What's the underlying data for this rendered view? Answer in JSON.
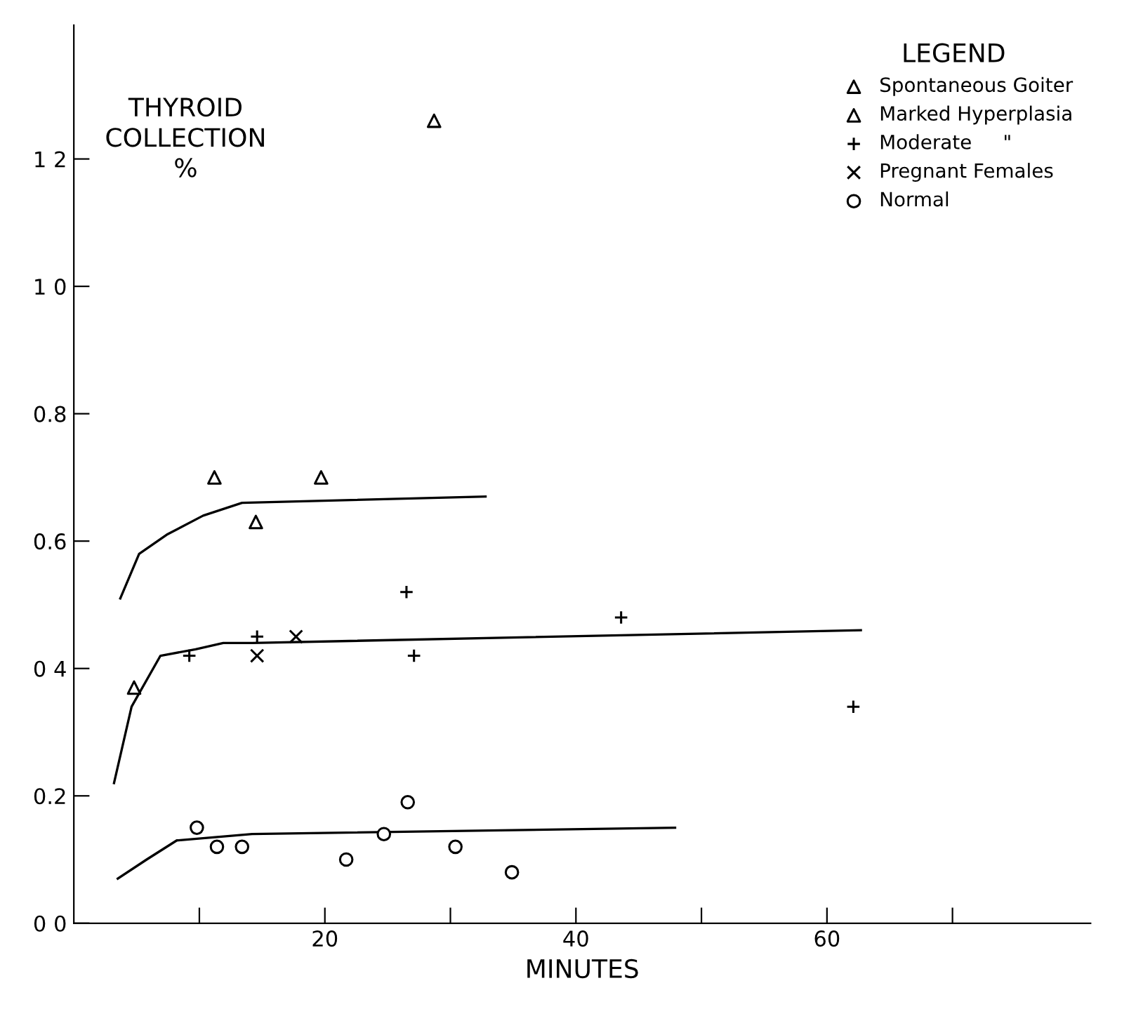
{
  "chart_data": {
    "type": "scatter",
    "ylabel": "THYROID\nCOLLECTION\n%",
    "xlabel": "MINUTES",
    "legend_title": "LEGEND",
    "legend": "top right",
    "grid": false,
    "xlim": [
      0,
      81
    ],
    "ylim": [
      0,
      1.41
    ],
    "xticks": [
      {
        "value": 10,
        "label": null
      },
      20,
      {
        "value": 30,
        "label": null
      },
      40,
      {
        "value": 50,
        "label": null
      },
      60,
      {
        "value": 70,
        "label": null
      }
    ],
    "yticks": [
      {
        "value": 0,
        "label": "0 0"
      },
      {
        "value": 0.2,
        "label": "0.2"
      },
      {
        "value": 0.4,
        "label": "0 4"
      },
      {
        "value": 0.6,
        "label": "0.6"
      },
      {
        "value": 0.8,
        "label": "0.8"
      },
      {
        "value": 1.0,
        "label": "1 0"
      },
      {
        "value": 1.2,
        "label": "1 2"
      }
    ],
    "series": [
      {
        "name": "Spontaneous Goiter",
        "color": "#000000",
        "marker": "triangle",
        "x": [
          11.2,
          28.7
        ],
        "values": [
          0.7,
          1.26
        ]
      },
      {
        "name": "Marked Hyperplasia",
        "color": "#000000",
        "marker": "triangle",
        "x": [
          4.8,
          14.5,
          19.7
        ],
        "values": [
          0.37,
          0.63,
          0.7
        ]
      },
      {
        "name": "Moderate     \"",
        "color": "#000000",
        "marker": "plus",
        "x": [
          9.2,
          14.6,
          26.5,
          27.1,
          43.6,
          62.1
        ],
        "values": [
          0.42,
          0.45,
          0.52,
          0.42,
          0.48,
          0.34
        ]
      },
      {
        "name": "Pregnant Females",
        "color": "#000000",
        "marker": "cross",
        "x": [
          14.6,
          17.7
        ],
        "values": [
          0.42,
          0.45
        ]
      },
      {
        "name": "Normal",
        "color": "#000000",
        "marker": "circle",
        "x": [
          9.8,
          11.4,
          13.4,
          21.7,
          24.7,
          26.6,
          30.4,
          34.9
        ],
        "values": [
          0.15,
          0.12,
          0.12,
          0.1,
          0.14,
          0.19,
          0.12,
          0.08
        ]
      },
      {
        "type": "line",
        "color": "#000000",
        "marker": "none",
        "x": [
          3.7,
          5.2,
          7.4,
          10.3,
          13.4,
          32.8
        ],
        "values": [
          0.51,
          0.58,
          0.61,
          0.64,
          0.66,
          0.67
        ]
      },
      {
        "type": "line",
        "color": "#000000",
        "marker": "none",
        "x": [
          3.2,
          4.6,
          6.9,
          9.7,
          11.9,
          14.2,
          62.7
        ],
        "values": [
          0.22,
          0.34,
          0.42,
          0.43,
          0.44,
          0.44,
          0.46
        ]
      },
      {
        "type": "line",
        "color": "#000000",
        "marker": "none",
        "x": [
          3.5,
          5.8,
          8.2,
          14.2,
          47.9
        ],
        "values": [
          0.07,
          0.1,
          0.13,
          0.14,
          0.15
        ]
      }
    ]
  }
}
